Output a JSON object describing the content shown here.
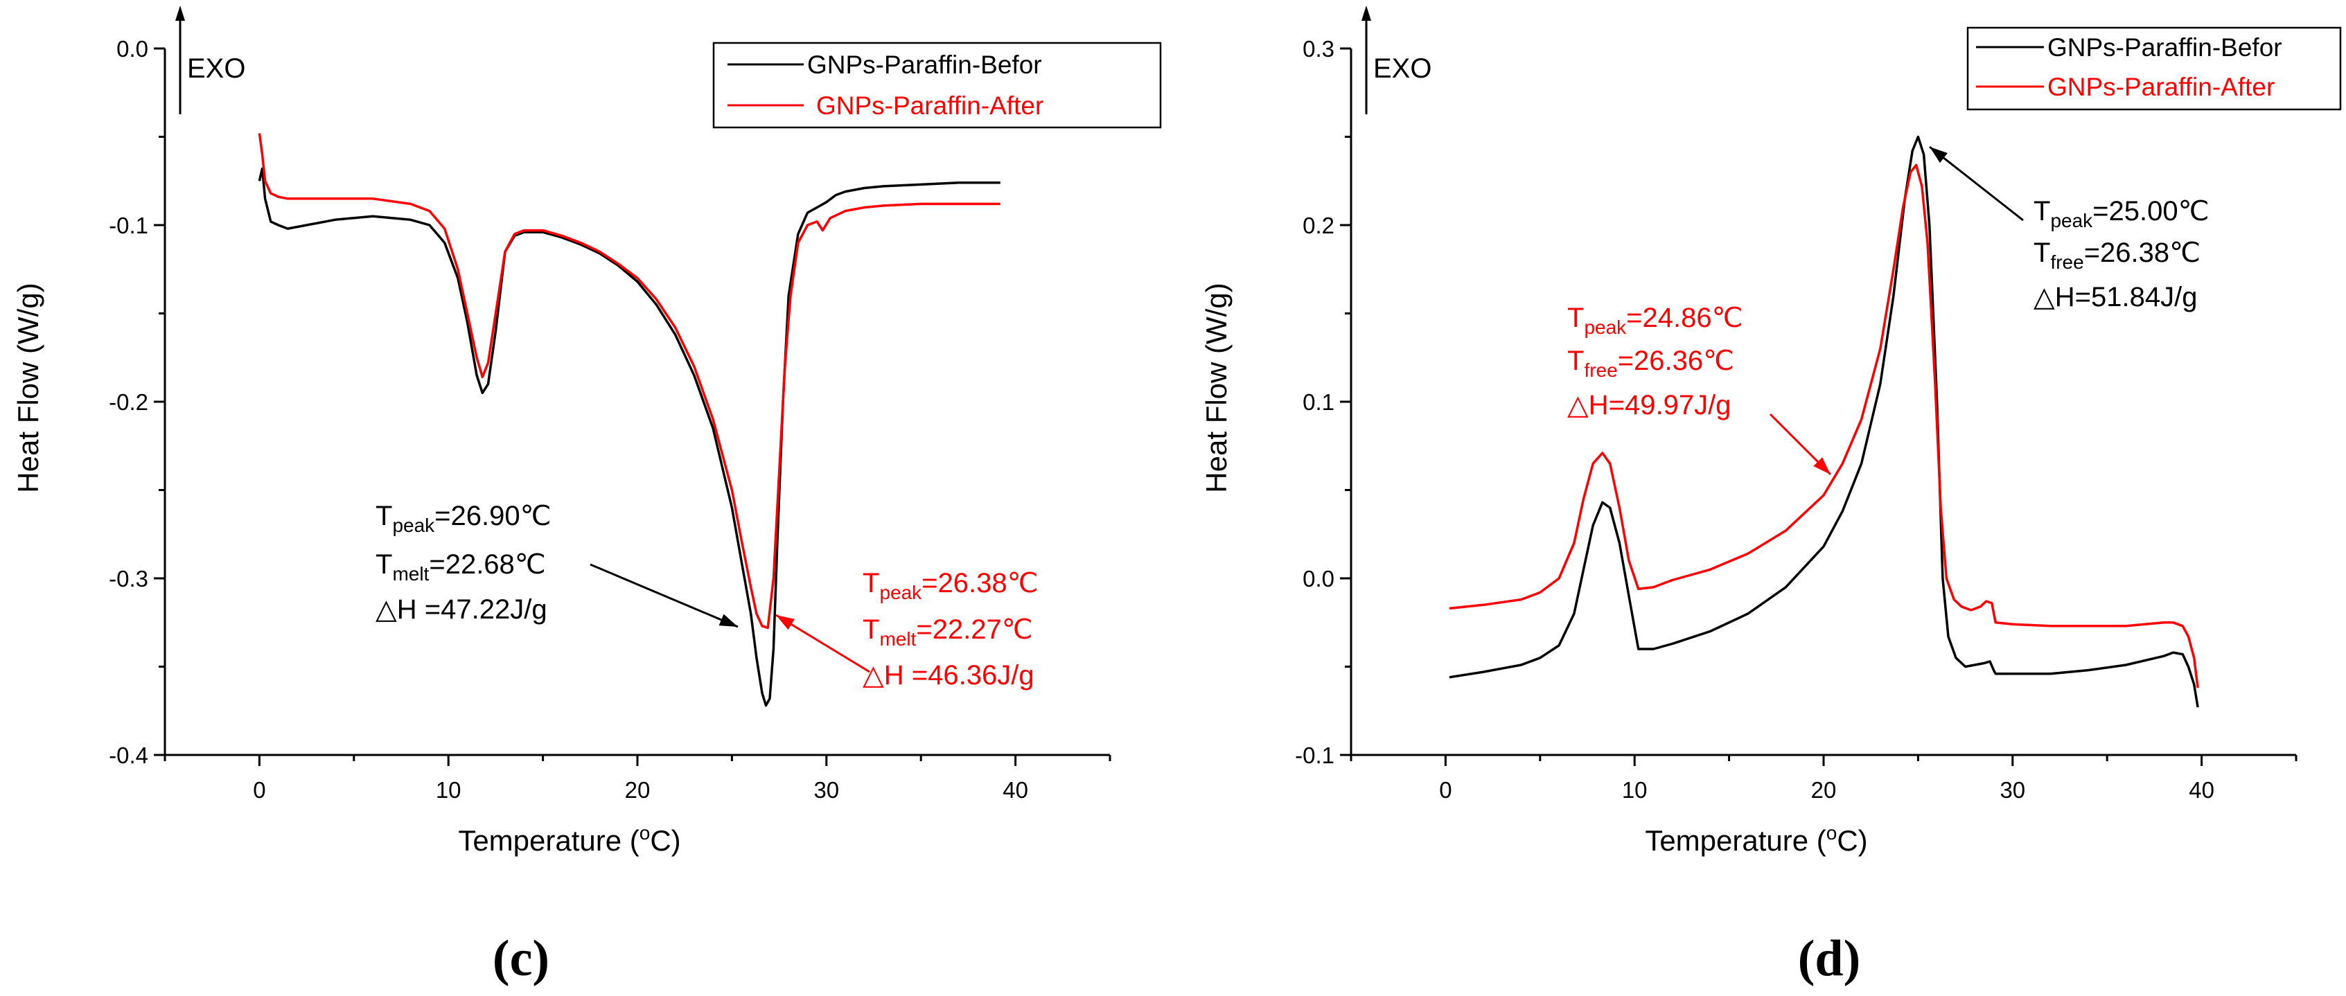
{
  "chart_data": [
    {
      "type": "line",
      "panel_label": "(c)",
      "xlabel_pre": "Temperature (",
      "xlabel_sup": "o",
      "xlabel_post": "C)",
      "ylabel": "Heat Flow (W/g)",
      "xlim": [
        -5,
        45
      ],
      "ylim": [
        -0.4,
        0.0
      ],
      "x_ticks": [
        0,
        10,
        20,
        30,
        40
      ],
      "y_ticks": [
        -0.4,
        -0.3,
        -0.2,
        -0.1,
        0.0
      ],
      "y_tick_labels": [
        "-0.4",
        "-0.3",
        "-0.2",
        "-0.1",
        "0.0"
      ],
      "exo_label": "EXO",
      "legend_position": "top-right",
      "series": [
        {
          "name": "GNPs-Paraffin-Befor",
          "color": "#000000",
          "x": [
            0,
            0.15,
            0.3,
            0.6,
            1.0,
            1.5,
            2.5,
            4,
            6,
            8,
            9,
            9.8,
            10.5,
            11,
            11.5,
            11.8,
            12.1,
            12.5,
            13,
            13.5,
            14,
            15,
            16,
            17,
            18,
            19,
            20,
            21,
            22,
            23,
            24,
            25,
            25.5,
            26,
            26.3,
            26.6,
            26.8,
            27.0,
            27.2,
            27.4,
            27.7,
            28,
            28.5,
            29,
            29.5,
            30,
            30.5,
            31,
            32,
            33,
            35,
            37,
            39.2
          ],
          "y": [
            -0.075,
            -0.068,
            -0.085,
            -0.098,
            -0.1,
            -0.102,
            -0.1,
            -0.097,
            -0.095,
            -0.097,
            -0.1,
            -0.11,
            -0.13,
            -0.155,
            -0.185,
            -0.195,
            -0.19,
            -0.16,
            -0.115,
            -0.106,
            -0.104,
            -0.104,
            -0.107,
            -0.111,
            -0.116,
            -0.123,
            -0.132,
            -0.145,
            -0.162,
            -0.185,
            -0.215,
            -0.26,
            -0.29,
            -0.32,
            -0.345,
            -0.365,
            -0.372,
            -0.368,
            -0.34,
            -0.28,
            -0.2,
            -0.14,
            -0.105,
            -0.093,
            -0.09,
            -0.087,
            -0.083,
            -0.081,
            -0.079,
            -0.078,
            -0.077,
            -0.076,
            -0.076
          ]
        },
        {
          "name": "GNPs-Paraffin-After",
          "color": "#ff0000",
          "x": [
            0,
            0.15,
            0.3,
            0.6,
            1.0,
            1.5,
            2.5,
            4,
            6,
            8,
            9,
            9.8,
            10.5,
            11,
            11.5,
            11.8,
            12.1,
            12.5,
            13,
            13.5,
            14,
            15,
            16,
            17,
            18,
            19,
            20,
            21,
            22,
            23,
            24,
            25,
            25.5,
            26,
            26.3,
            26.6,
            26.9,
            27.2,
            27.5,
            27.8,
            28.1,
            28.5,
            29,
            29.5,
            29.8,
            30.2,
            31,
            32,
            33,
            35,
            37,
            39.2
          ],
          "y": [
            -0.048,
            -0.06,
            -0.075,
            -0.082,
            -0.084,
            -0.085,
            -0.085,
            -0.085,
            -0.085,
            -0.088,
            -0.092,
            -0.102,
            -0.125,
            -0.15,
            -0.175,
            -0.186,
            -0.178,
            -0.15,
            -0.115,
            -0.105,
            -0.103,
            -0.103,
            -0.106,
            -0.11,
            -0.115,
            -0.122,
            -0.13,
            -0.142,
            -0.158,
            -0.18,
            -0.21,
            -0.25,
            -0.278,
            -0.305,
            -0.32,
            -0.327,
            -0.328,
            -0.3,
            -0.24,
            -0.18,
            -0.14,
            -0.11,
            -0.1,
            -0.098,
            -0.103,
            -0.096,
            -0.092,
            -0.09,
            -0.089,
            -0.088,
            -0.088,
            -0.088
          ]
        }
      ],
      "annotations": [
        {
          "color": "#000000",
          "T": "T",
          "sub1": "peak",
          "val1": "=26.90℃",
          "sub2": "melt",
          "val2": "=22.68℃",
          "dh": "△H =47.22J/g",
          "arrow_to": [
            26.2,
            -0.33
          ]
        },
        {
          "color": "#ff0000",
          "T": "T",
          "sub1": "peak",
          "val1": "=26.38℃",
          "sub2": "melt",
          "val2": "=22.27℃",
          "dh": "△H =46.36J/g",
          "arrow_to": [
            27.2,
            -0.325
          ]
        }
      ]
    },
    {
      "type": "line",
      "panel_label": "(d)",
      "xlabel_pre": "Temperature (",
      "xlabel_sup": "o",
      "xlabel_post": "C)",
      "ylabel": "Heat Flow (W/g)",
      "xlim": [
        -5,
        45
      ],
      "ylim": [
        -0.1,
        0.3
      ],
      "x_ticks": [
        0,
        10,
        20,
        30,
        40
      ],
      "y_ticks": [
        -0.1,
        0.0,
        0.1,
        0.2,
        0.3
      ],
      "y_tick_labels": [
        "-0.1",
        "0.0",
        "0.1",
        "0.2",
        "0.3"
      ],
      "exo_label": "EXO",
      "legend_position": "top-right",
      "series": [
        {
          "name": "GNPs-Paraffin-Befor",
          "color": "#000000",
          "x": [
            0.2,
            2,
            4,
            5,
            6,
            6.8,
            7.3,
            7.8,
            8.3,
            8.7,
            9.2,
            9.7,
            10.2,
            11,
            12,
            14,
            16,
            18,
            20,
            21,
            22,
            23,
            23.7,
            24.3,
            24.7,
            25.0,
            25.3,
            25.6,
            26.0,
            26.3,
            26.6,
            27,
            27.5,
            28.0,
            28.5,
            28.8,
            29.0,
            29.1,
            30,
            32,
            34,
            36,
            38,
            38.5,
            39.0,
            39.3,
            39.6,
            39.8
          ],
          "y": [
            -0.056,
            -0.053,
            -0.049,
            -0.045,
            -0.038,
            -0.02,
            0.005,
            0.03,
            0.043,
            0.04,
            0.02,
            -0.01,
            -0.04,
            -0.04,
            -0.037,
            -0.03,
            -0.02,
            -0.005,
            0.018,
            0.038,
            0.065,
            0.11,
            0.16,
            0.215,
            0.242,
            0.25,
            0.24,
            0.2,
            0.1,
            0.0,
            -0.033,
            -0.045,
            -0.05,
            -0.049,
            -0.048,
            -0.047,
            -0.052,
            -0.054,
            -0.054,
            -0.054,
            -0.052,
            -0.049,
            -0.044,
            -0.042,
            -0.043,
            -0.05,
            -0.06,
            -0.073
          ]
        },
        {
          "name": "GNPs-Paraffin-After",
          "color": "#ff0000",
          "x": [
            0.2,
            2,
            4,
            5,
            6,
            6.8,
            7.3,
            7.8,
            8.3,
            8.7,
            9.2,
            9.7,
            10.2,
            11,
            12,
            14,
            16,
            18,
            20,
            21,
            22,
            23,
            23.7,
            24.2,
            24.6,
            24.9,
            25.2,
            25.5,
            25.9,
            26.2,
            26.5,
            26.9,
            27.3,
            27.8,
            28.3,
            28.6,
            28.9,
            29.1,
            30,
            32,
            34,
            36,
            38,
            38.5,
            39.0,
            39.3,
            39.6,
            39.8
          ],
          "y": [
            -0.017,
            -0.015,
            -0.012,
            -0.008,
            0.0,
            0.02,
            0.045,
            0.065,
            0.071,
            0.065,
            0.04,
            0.01,
            -0.006,
            -0.005,
            -0.001,
            0.005,
            0.014,
            0.027,
            0.047,
            0.065,
            0.09,
            0.13,
            0.175,
            0.21,
            0.23,
            0.234,
            0.222,
            0.19,
            0.11,
            0.04,
            0.0,
            -0.012,
            -0.016,
            -0.018,
            -0.016,
            -0.013,
            -0.014,
            -0.025,
            -0.026,
            -0.027,
            -0.027,
            -0.027,
            -0.025,
            -0.025,
            -0.027,
            -0.033,
            -0.045,
            -0.062
          ]
        }
      ],
      "annotations": [
        {
          "color": "#000000",
          "T": "T",
          "sub1": "peak",
          "val1": "=25.00℃",
          "sub2": "free",
          "val2": "=26.38℃",
          "dh": "△H=51.84J/g",
          "arrow_to": [
            25.1,
            0.249
          ]
        },
        {
          "color": "#ff0000",
          "T": "T",
          "sub1": "peak",
          "val1": "=24.86℃",
          "sub2": "free",
          "val2": "=26.36℃",
          "dh": "△H=49.97J/g",
          "arrow_to": [
            21.0,
            0.062
          ]
        }
      ]
    }
  ]
}
